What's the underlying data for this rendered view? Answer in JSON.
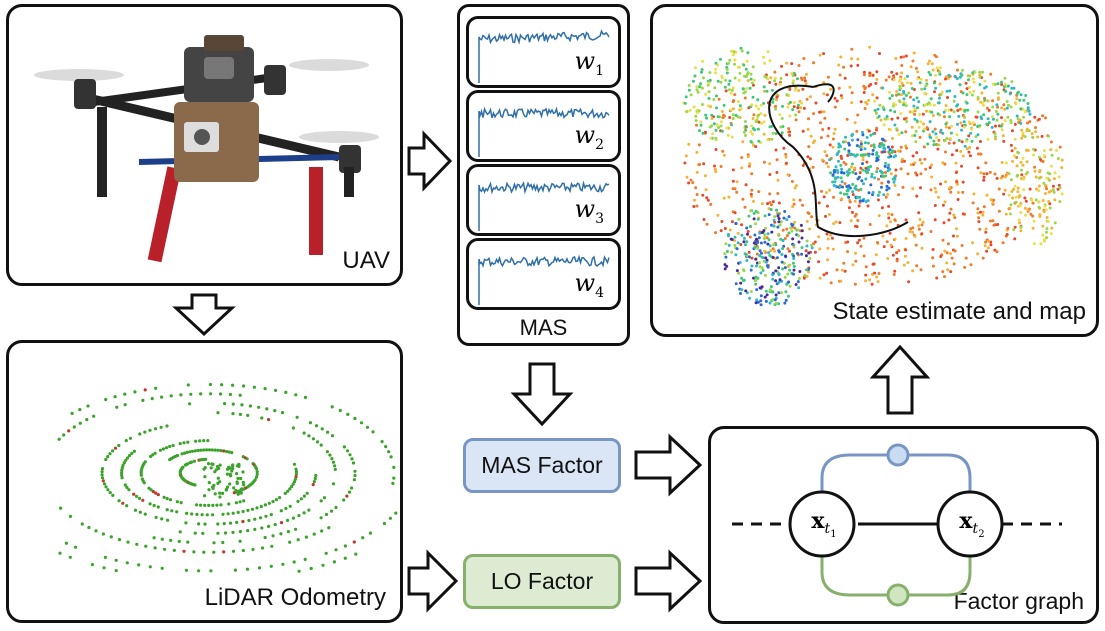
{
  "panels": {
    "uav": {
      "label": "UAV"
    },
    "lidar": {
      "label": "LiDAR Odometry"
    },
    "mas": {
      "label": "MAS",
      "signals": [
        {
          "symbol": "w",
          "subscript": "1"
        },
        {
          "symbol": "w",
          "subscript": "2"
        },
        {
          "symbol": "w",
          "subscript": "3"
        },
        {
          "symbol": "w",
          "subscript": "4"
        }
      ]
    },
    "state": {
      "label": "State estimate and map"
    },
    "factor_graph": {
      "label": "Factor graph",
      "node_left": {
        "symbol": "x",
        "subscript": "t",
        "subsub": "1"
      },
      "node_right": {
        "symbol": "x",
        "subscript": "t",
        "subsub": "2"
      }
    }
  },
  "factors": {
    "mas": {
      "label": "MAS Factor",
      "fill": "#dae6f6",
      "border": "#7896c4"
    },
    "lo": {
      "label": "LO Factor",
      "fill": "#dcebd2",
      "border": "#86b06c"
    }
  },
  "colors": {
    "mas_edge": "#7896c4",
    "lo_edge": "#86b06c",
    "signal": "#2f6fa8",
    "lidar_points": "#3aa32a",
    "lidar_red": "#c0392b"
  }
}
